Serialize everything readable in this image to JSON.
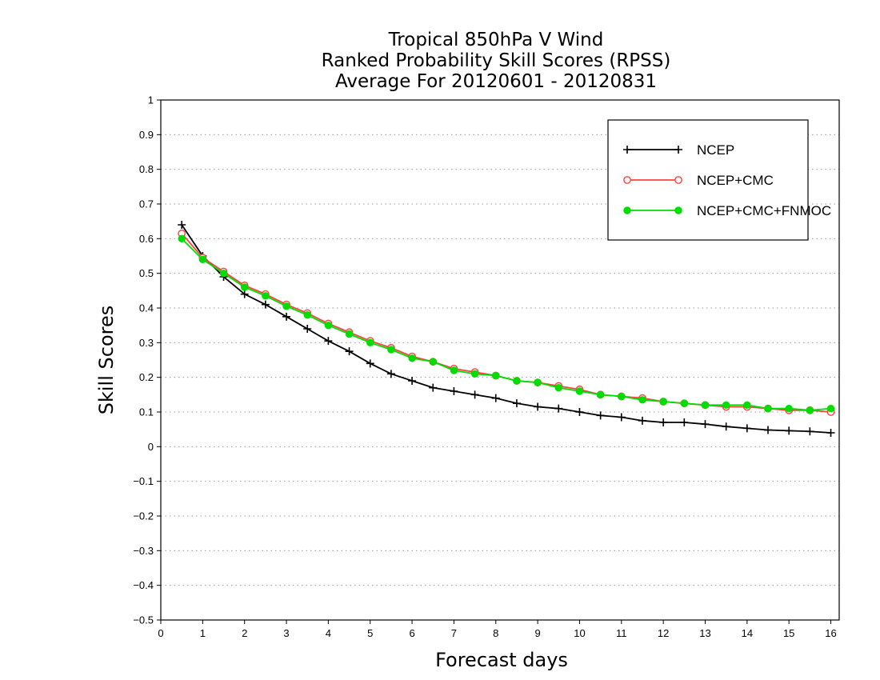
{
  "chart_data": {
    "type": "line",
    "title": [
      "Tropical 850hPa V Wind",
      "Ranked Probability Skill Scores (RPSS)",
      "Average For 20120601 - 20120831"
    ],
    "xlabel": "Forecast days",
    "ylabel": "Skill Scores",
    "xlim": [
      0,
      16.2
    ],
    "ylim": [
      -0.5,
      1
    ],
    "xticks": [
      0,
      1,
      2,
      3,
      4,
      5,
      6,
      7,
      8,
      9,
      10,
      11,
      12,
      13,
      14,
      15,
      16
    ],
    "xtick_labels": [
      "0",
      "1",
      "2",
      "3",
      "4",
      "5",
      "6",
      "7",
      "8",
      "9",
      "10",
      "11",
      "12",
      "13",
      "14",
      "15",
      "16"
    ],
    "yticks": [
      -0.5,
      -0.4,
      -0.3,
      -0.2,
      -0.1,
      0,
      0.1,
      0.2,
      0.3,
      0.4,
      0.5,
      0.6,
      0.7,
      0.8,
      0.9,
      1
    ],
    "ytick_labels": [
      "−0.5",
      "−0.4",
      "−0.3",
      "−0.2",
      "−0.1",
      "0",
      "0.1",
      "0.2",
      "0.3",
      "0.4",
      "0.5",
      "0.6",
      "0.7",
      "0.8",
      "0.9",
      "1"
    ],
    "grid": "horizontal dotted",
    "legend_position": "top-right",
    "x": [
      0.5,
      1,
      1.5,
      2,
      2.5,
      3,
      3.5,
      4,
      4.5,
      5,
      5.5,
      6,
      6.5,
      7,
      7.5,
      8,
      8.5,
      9,
      9.5,
      10,
      10.5,
      11,
      11.5,
      12,
      12.5,
      13,
      13.5,
      14,
      14.5,
      15,
      15.5,
      16
    ],
    "series": [
      {
        "name": "NCEP",
        "color": "#000000",
        "marker": "plus",
        "values": [
          0.64,
          0.55,
          0.49,
          0.44,
          0.41,
          0.375,
          0.34,
          0.305,
          0.275,
          0.24,
          0.21,
          0.19,
          0.17,
          0.16,
          0.15,
          0.14,
          0.125,
          0.115,
          0.11,
          0.1,
          0.09,
          0.085,
          0.075,
          0.07,
          0.07,
          0.065,
          0.058,
          0.053,
          0.048,
          0.046,
          0.044,
          0.04
        ]
      },
      {
        "name": "NCEP+CMC",
        "color": "#ff4040",
        "marker": "open-circle",
        "values": [
          0.615,
          0.545,
          0.505,
          0.465,
          0.44,
          0.41,
          0.385,
          0.355,
          0.33,
          0.305,
          0.285,
          0.26,
          0.245,
          0.225,
          0.215,
          0.205,
          0.19,
          0.185,
          0.175,
          0.165,
          0.15,
          0.145,
          0.14,
          0.13,
          0.125,
          0.12,
          0.115,
          0.115,
          0.11,
          0.105,
          0.105,
          0.1
        ]
      },
      {
        "name": "NCEP+CMC+FNMOC",
        "color": "#00dd00",
        "marker": "filled-circle",
        "values": [
          0.6,
          0.54,
          0.5,
          0.46,
          0.435,
          0.405,
          0.38,
          0.35,
          0.325,
          0.3,
          0.28,
          0.255,
          0.245,
          0.22,
          0.21,
          0.205,
          0.19,
          0.185,
          0.17,
          0.16,
          0.15,
          0.145,
          0.135,
          0.13,
          0.125,
          0.12,
          0.12,
          0.12,
          0.11,
          0.11,
          0.105,
          0.11
        ]
      }
    ]
  }
}
